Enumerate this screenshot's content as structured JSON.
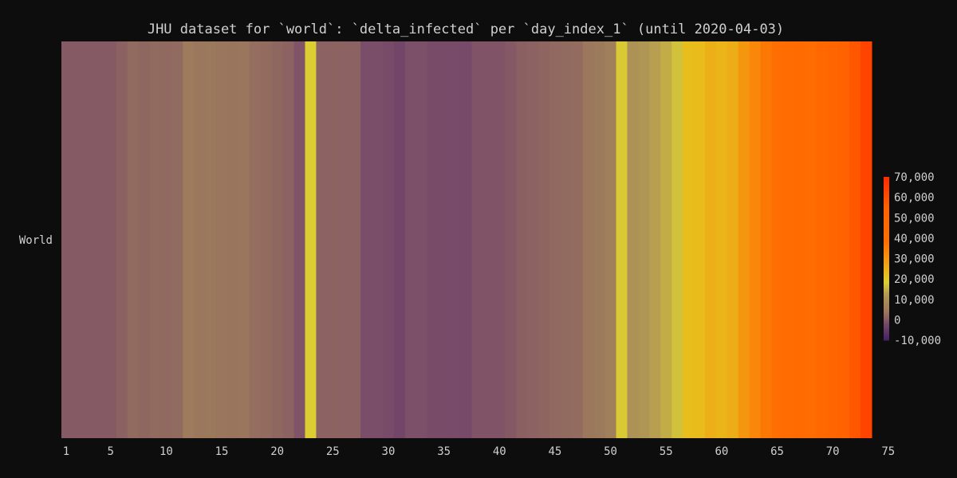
{
  "chart_data": {
    "type": "heatmap",
    "title": "JHU dataset for `world`: `delta_infected` per `day_index_1` (until 2020-04-03)",
    "ylabel": "World",
    "xlabel": "",
    "x_tick_labels": [
      "1",
      "5",
      "10",
      "15",
      "20",
      "25",
      "30",
      "35",
      "40",
      "45",
      "50",
      "55",
      "60",
      "65",
      "70",
      "75"
    ],
    "xlim": [
      1,
      75
    ],
    "days": [
      1,
      2,
      3,
      4,
      5,
      6,
      7,
      8,
      9,
      10,
      11,
      12,
      13,
      14,
      15,
      16,
      17,
      18,
      19,
      20,
      21,
      22,
      23,
      24,
      25,
      26,
      27,
      28,
      29,
      30,
      31,
      32,
      33,
      34,
      35,
      36,
      37,
      38,
      39,
      40,
      41,
      42,
      43,
      44,
      45,
      46,
      47,
      48,
      49,
      50,
      51,
      52,
      53,
      54,
      55,
      56,
      57,
      58,
      59,
      60,
      61,
      62,
      63,
      64,
      65,
      66,
      67,
      68,
      69,
      70,
      71,
      72,
      73
    ],
    "values": [
      100,
      100,
      100,
      150,
      100,
      900,
      2100,
      1700,
      2100,
      2000,
      2100,
      4700,
      4100,
      4300,
      3900,
      3800,
      3900,
      2700,
      2500,
      1700,
      1000,
      -500,
      18500,
      1000,
      1200,
      1100,
      1000,
      -1200,
      -1200,
      -1500,
      -2500,
      -1000,
      -1000,
      -1500,
      -1500,
      -1500,
      -1700,
      -500,
      -500,
      -500,
      0,
      800,
      1000,
      1500,
      2000,
      2200,
      2500,
      4000,
      4500,
      6000,
      18000,
      11000,
      12000,
      13000,
      14500,
      17000,
      22000,
      22500,
      25000,
      24000,
      25500,
      30000,
      33000,
      36000,
      38000,
      41000,
      43000,
      41000,
      46000,
      51000,
      55000,
      58000,
      63000
    ],
    "colorbar": {
      "min": -10000,
      "max": 70000,
      "tick_values": [
        70000,
        60000,
        50000,
        40000,
        30000,
        20000,
        10000,
        0,
        -10000
      ],
      "tick_labels": [
        "70,000",
        "60,000",
        "50,000",
        "40,000",
        "30,000",
        "20,000",
        "10,000",
        "0",
        "-10,000"
      ]
    },
    "colors": {
      "background": "#0d0d0d",
      "text": "#d0d0d0"
    }
  }
}
